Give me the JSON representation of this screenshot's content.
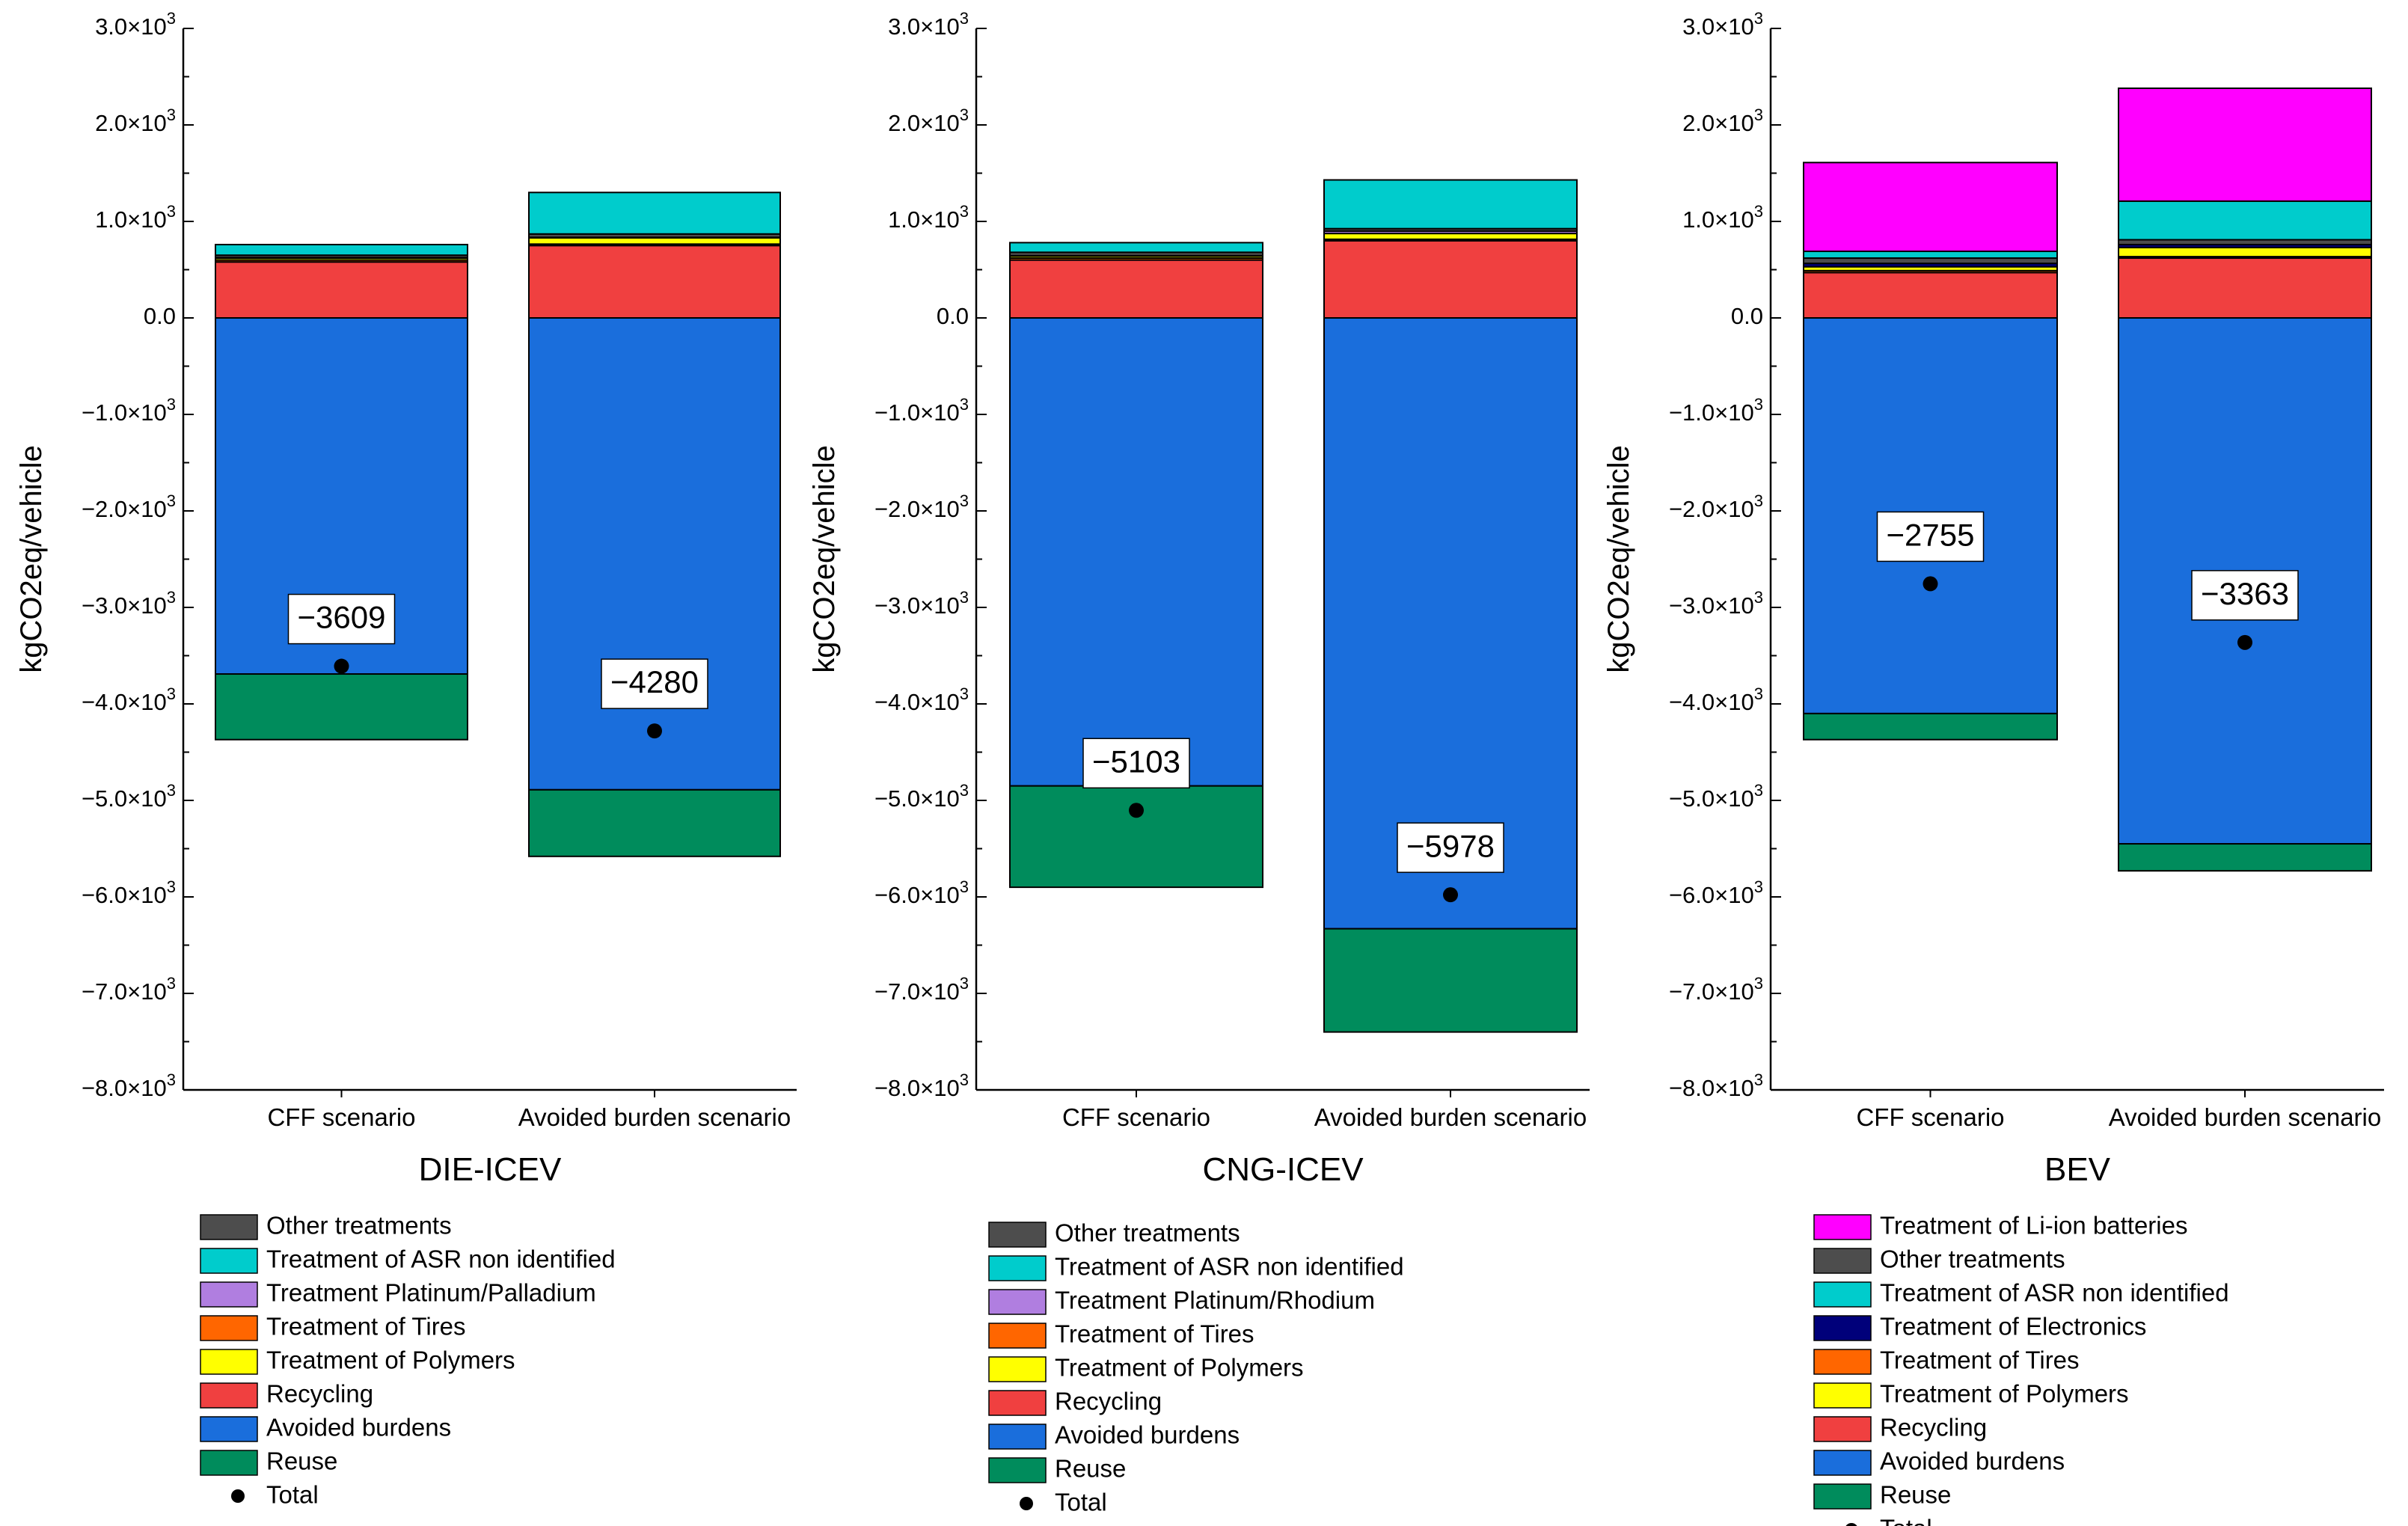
{
  "colors": {
    "Other treatments": "#4d4d4d",
    "Treatment of ASR non identified": "#00cccc",
    "Treatment Platinum/Palladium": "#b07ee0",
    "Treatment Platinum/Rhodium": "#b07ee0",
    "Treatment of Tires": "#ff6600",
    "Treatment of Polymers": "#ffff00",
    "Recycling": "#f04040",
    "Avoided burdens": "#1a6edc",
    "Reuse": "#008c5c",
    "Treatment of Li-ion batteries": "#ff00ff",
    "Treatment of Electronics": "#00007a"
  },
  "chart_data": [
    {
      "type": "bar",
      "stacked": true,
      "title": "DIE-ICEV",
      "ylabel": "kgCO2eq/vehicle",
      "ylim": [
        -8000,
        3000
      ],
      "yticks": [
        "3.0×10³",
        "2.0×10³",
        "1.0×10³",
        "0.0",
        "−1.0×10³",
        "−2.0×10³",
        "−3.0×10³",
        "−4.0×10³",
        "−5.0×10³",
        "−6.0×10³",
        "−7.0×10³",
        "−8.0×10³"
      ],
      "categories": [
        "CFF scenario",
        "Avoided burden scenario"
      ],
      "positive_series": [
        {
          "name": "Recycling",
          "values": [
            580,
            750
          ]
        },
        {
          "name": "Treatment of Tires",
          "values": [
            20,
            15
          ]
        },
        {
          "name": "Treatment of Polymers",
          "values": [
            20,
            65
          ]
        },
        {
          "name": "Treatment Platinum/Palladium",
          "values": [
            5,
            5
          ]
        },
        {
          "name": "Other treatments",
          "values": [
            25,
            35
          ]
        },
        {
          "name": "Treatment of ASR non identified",
          "values": [
            110,
            430
          ]
        }
      ],
      "negative_series": [
        {
          "name": "Avoided burdens",
          "values": [
            -3690,
            -4890
          ]
        },
        {
          "name": "Reuse",
          "values": [
            -680,
            -690
          ]
        }
      ],
      "totals": [
        -3609,
        -4280
      ],
      "total_labels": [
        "−3609",
        "−4280"
      ],
      "legend": [
        "Other treatments",
        "Treatment of ASR non identified",
        "Treatment Platinum/Palladium",
        "Treatment of Tires",
        "Treatment of Polymers",
        "Recycling",
        "Avoided burdens",
        "Reuse",
        "Total"
      ]
    },
    {
      "type": "bar",
      "stacked": true,
      "title": "CNG-ICEV",
      "ylabel": "kgCO2eq/vehicle",
      "ylim": [
        -8000,
        3000
      ],
      "yticks": [
        "3.0×10³",
        "2.0×10³",
        "1.0×10³",
        "0.0",
        "−1.0×10³",
        "−2.0×10³",
        "−3.0×10³",
        "−4.0×10³",
        "−5.0×10³",
        "−6.0×10³",
        "−7.0×10³",
        "−8.0×10³"
      ],
      "categories": [
        "CFF scenario",
        "Avoided burden scenario"
      ],
      "positive_series": [
        {
          "name": "Recycling",
          "values": [
            600,
            800
          ]
        },
        {
          "name": "Treatment of Tires",
          "values": [
            20,
            15
          ]
        },
        {
          "name": "Treatment of Polymers",
          "values": [
            20,
            60
          ]
        },
        {
          "name": "Treatment Platinum/Rhodium",
          "values": [
            5,
            25
          ]
        },
        {
          "name": "Other treatments",
          "values": [
            35,
            25
          ]
        },
        {
          "name": "Treatment of ASR non identified",
          "values": [
            100,
            505
          ]
        }
      ],
      "negative_series": [
        {
          "name": "Avoided burdens",
          "values": [
            -4850,
            -6330
          ]
        },
        {
          "name": "Reuse",
          "values": [
            -1050,
            -1070
          ]
        }
      ],
      "totals": [
        -5103,
        -5978
      ],
      "total_labels": [
        "−5103",
        "−5978"
      ],
      "legend": [
        "Other treatments",
        "Treatment of ASR non identified",
        "Treatment Platinum/Rhodium",
        "Treatment of Tires",
        "Treatment of Polymers",
        "Recycling",
        "Avoided burdens",
        "Reuse",
        "Total"
      ]
    },
    {
      "type": "bar",
      "stacked": true,
      "title": "BEV",
      "ylabel": "kgCO2eq/vehicle",
      "ylim": [
        -8000,
        3000
      ],
      "yticks": [
        "3.0×10³",
        "2.0×10³",
        "1.0×10³",
        "0.0",
        "−1.0×10³",
        "−2.0×10³",
        "−3.0×10³",
        "−4.0×10³",
        "−5.0×10³",
        "−6.0×10³",
        "−7.0×10³",
        "−8.0×10³"
      ],
      "categories": [
        "CFF scenario",
        "Avoided burden scenario"
      ],
      "positive_series": [
        {
          "name": "Recycling",
          "values": [
            470,
            620
          ]
        },
        {
          "name": "Treatment of Tires",
          "values": [
            20,
            15
          ]
        },
        {
          "name": "Treatment of Polymers",
          "values": [
            40,
            95
          ]
        },
        {
          "name": "Treatment of Electronics",
          "values": [
            35,
            30
          ]
        },
        {
          "name": "Other treatments",
          "values": [
            55,
            50
          ]
        },
        {
          "name": "Treatment of ASR non identified",
          "values": [
            70,
            400
          ]
        },
        {
          "name": "Treatment of Li-ion batteries",
          "values": [
            920,
            1170
          ]
        }
      ],
      "negative_series": [
        {
          "name": "Avoided burdens",
          "values": [
            -4100,
            -5450
          ]
        },
        {
          "name": "Reuse",
          "values": [
            -270,
            -280
          ]
        }
      ],
      "totals": [
        -2755,
        -3363
      ],
      "total_labels": [
        "−2755",
        "−3363"
      ],
      "legend": [
        "Treatment of Li-ion batteries",
        "Other treatments",
        "Treatment of ASR non identified",
        "Treatment of Electronics",
        "Treatment of Tires",
        "Treatment of Polymers",
        "Recycling",
        "Avoided burdens",
        "Reuse",
        "Total"
      ]
    }
  ]
}
